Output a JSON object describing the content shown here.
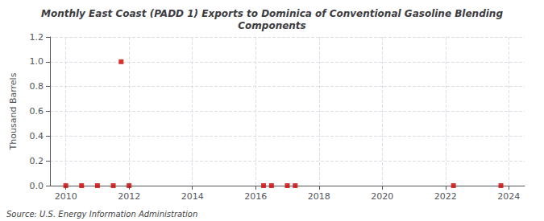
{
  "chart_data": {
    "type": "scatter",
    "title": "Monthly East Coast (PADD 1) Exports to Dominica of Conventional Gasoline Blending\nComponents",
    "ylabel": "Thousand Barrels",
    "annotation": "Source: U.S. Energy Information Administration",
    "x": [
      2010.0,
      2010.5,
      2011.0,
      2011.5,
      2011.75,
      2012.0,
      2016.25,
      2016.5,
      2017.0,
      2017.25,
      2022.25,
      2023.75
    ],
    "values": [
      0.0,
      0.0,
      0.0,
      0.0,
      1.0,
      0.0,
      0.0,
      0.0,
      0.0,
      0.0,
      0.0,
      0.0
    ],
    "color": "#cc0000",
    "marker": "square",
    "xlim": [
      2009.5,
      2024.5
    ],
    "xticks": [
      2010,
      2012,
      2014,
      2016,
      2018,
      2020,
      2022,
      2024
    ],
    "ylim": [
      0.0,
      1.2
    ],
    "yticks": [
      {
        "value": 0.0,
        "label": "0.0"
      },
      {
        "value": 0.2,
        "label": "0.2"
      },
      {
        "value": 0.4,
        "label": "0.4"
      },
      {
        "value": 0.6,
        "label": "0.6"
      },
      {
        "value": 0.8,
        "label": "0.8"
      },
      {
        "value": 1.0,
        "label": "1.0"
      },
      {
        "value": 1.2,
        "label": "1.2"
      }
    ],
    "grid": true
  }
}
